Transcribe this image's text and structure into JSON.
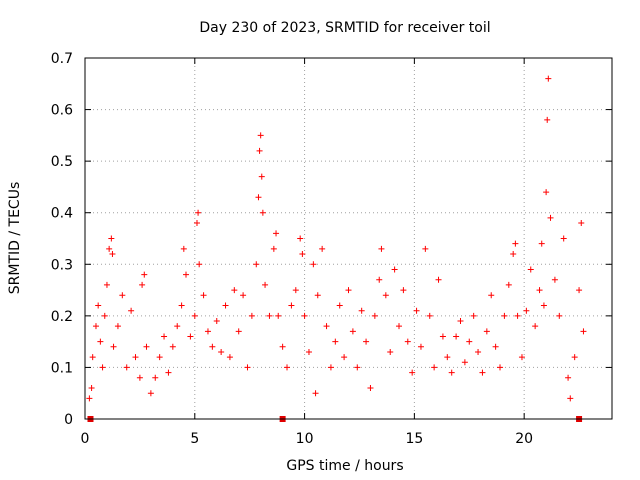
{
  "chart_data": {
    "type": "scatter",
    "title": "Day 230 of 2023, SRMTID for receiver toil",
    "xlabel": "GPS time / hours",
    "ylabel": "SRMTID / TECUs",
    "xlim": [
      0,
      24
    ],
    "ylim": [
      0,
      0.7
    ],
    "xticks": [
      0,
      5,
      10,
      15,
      20
    ],
    "xtick_labels": [
      "0",
      "5",
      "10",
      "15",
      "20"
    ],
    "yticks": [
      0,
      0.1,
      0.2,
      0.3,
      0.4,
      0.5,
      0.6,
      0.7
    ],
    "ytick_labels": [
      "0",
      "0.1",
      "0.2",
      "0.3",
      "0.4",
      "0.5",
      "0.6",
      "0.7"
    ],
    "grid": true,
    "legend": "none",
    "marker": "+",
    "series_color": "#ff0000",
    "marker_color": "#e00000",
    "gap_markers_x": [
      0.25,
      9.0,
      22.5
    ],
    "series": [
      {
        "name": "SRMTID",
        "points": [
          [
            0.2,
            0.04
          ],
          [
            0.3,
            0.06
          ],
          [
            0.35,
            0.12
          ],
          [
            0.5,
            0.18
          ],
          [
            0.6,
            0.22
          ],
          [
            0.7,
            0.15
          ],
          [
            0.8,
            0.1
          ],
          [
            0.9,
            0.2
          ],
          [
            1.0,
            0.26
          ],
          [
            1.1,
            0.33
          ],
          [
            1.2,
            0.35
          ],
          [
            1.25,
            0.32
          ],
          [
            1.3,
            0.14
          ],
          [
            1.5,
            0.18
          ],
          [
            1.7,
            0.24
          ],
          [
            1.9,
            0.1
          ],
          [
            2.1,
            0.21
          ],
          [
            2.3,
            0.12
          ],
          [
            2.5,
            0.08
          ],
          [
            2.6,
            0.26
          ],
          [
            2.7,
            0.28
          ],
          [
            2.8,
            0.14
          ],
          [
            3.0,
            0.05
          ],
          [
            3.2,
            0.08
          ],
          [
            3.4,
            0.12
          ],
          [
            3.6,
            0.16
          ],
          [
            3.8,
            0.09
          ],
          [
            4.0,
            0.14
          ],
          [
            4.2,
            0.18
          ],
          [
            4.4,
            0.22
          ],
          [
            4.5,
            0.33
          ],
          [
            4.6,
            0.28
          ],
          [
            4.8,
            0.16
          ],
          [
            5.0,
            0.2
          ],
          [
            5.1,
            0.38
          ],
          [
            5.15,
            0.4
          ],
          [
            5.2,
            0.3
          ],
          [
            5.4,
            0.24
          ],
          [
            5.6,
            0.17
          ],
          [
            5.8,
            0.14
          ],
          [
            6.0,
            0.19
          ],
          [
            6.2,
            0.13
          ],
          [
            6.4,
            0.22
          ],
          [
            6.6,
            0.12
          ],
          [
            6.8,
            0.25
          ],
          [
            7.0,
            0.17
          ],
          [
            7.2,
            0.24
          ],
          [
            7.4,
            0.1
          ],
          [
            7.6,
            0.2
          ],
          [
            7.8,
            0.3
          ],
          [
            7.9,
            0.43
          ],
          [
            7.95,
            0.52
          ],
          [
            8.0,
            0.55
          ],
          [
            8.05,
            0.47
          ],
          [
            8.1,
            0.4
          ],
          [
            8.2,
            0.26
          ],
          [
            8.4,
            0.2
          ],
          [
            8.6,
            0.33
          ],
          [
            8.7,
            0.36
          ],
          [
            8.8,
            0.2
          ],
          [
            9.0,
            0.14
          ],
          [
            9.2,
            0.1
          ],
          [
            9.4,
            0.22
          ],
          [
            9.6,
            0.25
          ],
          [
            9.8,
            0.35
          ],
          [
            9.9,
            0.32
          ],
          [
            10.0,
            0.2
          ],
          [
            10.2,
            0.13
          ],
          [
            10.4,
            0.3
          ],
          [
            10.5,
            0.05
          ],
          [
            10.6,
            0.24
          ],
          [
            10.8,
            0.33
          ],
          [
            11.0,
            0.18
          ],
          [
            11.2,
            0.1
          ],
          [
            11.4,
            0.15
          ],
          [
            11.6,
            0.22
          ],
          [
            11.8,
            0.12
          ],
          [
            12.0,
            0.25
          ],
          [
            12.2,
            0.17
          ],
          [
            12.4,
            0.1
          ],
          [
            12.6,
            0.21
          ],
          [
            12.8,
            0.15
          ],
          [
            13.0,
            0.06
          ],
          [
            13.2,
            0.2
          ],
          [
            13.4,
            0.27
          ],
          [
            13.5,
            0.33
          ],
          [
            13.7,
            0.24
          ],
          [
            13.9,
            0.13
          ],
          [
            14.1,
            0.29
          ],
          [
            14.3,
            0.18
          ],
          [
            14.5,
            0.25
          ],
          [
            14.7,
            0.15
          ],
          [
            14.9,
            0.09
          ],
          [
            15.1,
            0.21
          ],
          [
            15.3,
            0.14
          ],
          [
            15.5,
            0.33
          ],
          [
            15.7,
            0.2
          ],
          [
            15.9,
            0.1
          ],
          [
            16.1,
            0.27
          ],
          [
            16.3,
            0.16
          ],
          [
            16.5,
            0.12
          ],
          [
            16.7,
            0.09
          ],
          [
            16.9,
            0.16
          ],
          [
            17.1,
            0.19
          ],
          [
            17.3,
            0.11
          ],
          [
            17.5,
            0.15
          ],
          [
            17.7,
            0.2
          ],
          [
            17.9,
            0.13
          ],
          [
            18.1,
            0.09
          ],
          [
            18.3,
            0.17
          ],
          [
            18.5,
            0.24
          ],
          [
            18.7,
            0.14
          ],
          [
            18.9,
            0.1
          ],
          [
            19.1,
            0.2
          ],
          [
            19.3,
            0.26
          ],
          [
            19.5,
            0.32
          ],
          [
            19.6,
            0.34
          ],
          [
            19.7,
            0.2
          ],
          [
            19.9,
            0.12
          ],
          [
            20.1,
            0.21
          ],
          [
            20.3,
            0.29
          ],
          [
            20.5,
            0.18
          ],
          [
            20.7,
            0.25
          ],
          [
            20.8,
            0.34
          ],
          [
            20.9,
            0.22
          ],
          [
            21.0,
            0.44
          ],
          [
            21.05,
            0.58
          ],
          [
            21.1,
            0.66
          ],
          [
            21.2,
            0.39
          ],
          [
            21.4,
            0.27
          ],
          [
            21.6,
            0.2
          ],
          [
            21.8,
            0.35
          ],
          [
            22.0,
            0.08
          ],
          [
            22.1,
            0.04
          ],
          [
            22.3,
            0.12
          ],
          [
            22.5,
            0.25
          ],
          [
            22.6,
            0.38
          ],
          [
            22.7,
            0.17
          ]
        ]
      }
    ]
  }
}
